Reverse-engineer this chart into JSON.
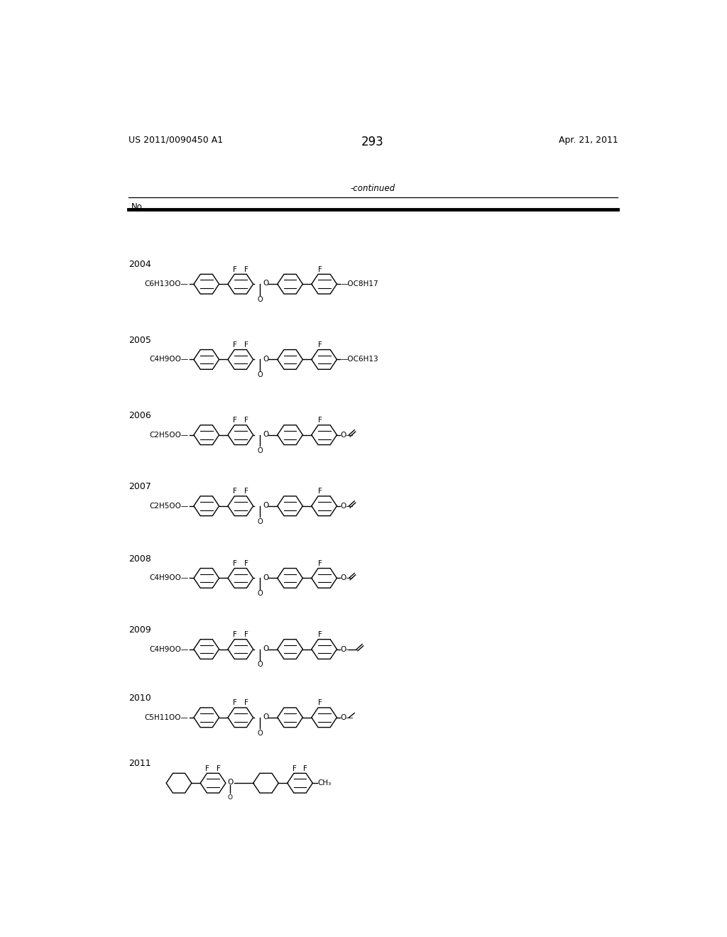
{
  "page_number": "293",
  "patent_number": "US 2011/0090450 A1",
  "patent_date": "Apr. 21, 2011",
  "background_color": "#ffffff",
  "compounds": [
    {
      "no": "2004",
      "left_group": "C6H13O",
      "right_group": "OC8H17",
      "right_type": "alkoxy"
    },
    {
      "no": "2005",
      "left_group": "C4H9O",
      "right_group": "OC6H13",
      "right_type": "alkoxy"
    },
    {
      "no": "2006",
      "left_group": "C2H5O",
      "right_group": "O",
      "right_vinyl": true,
      "right_type": "vinyl"
    },
    {
      "no": "2007",
      "left_group": "C2H5O",
      "right_group": "O",
      "right_allyl": true,
      "right_type": "allyl"
    },
    {
      "no": "2008",
      "left_group": "C4H9O",
      "right_group": "O",
      "right_allyl": true,
      "right_type": "allyl"
    },
    {
      "no": "2009",
      "left_group": "C4H9O",
      "right_group": "O",
      "right_butenyl": true,
      "right_type": "butenyl"
    },
    {
      "no": "2010",
      "left_group": "C5H11O",
      "right_group": "O",
      "right_ethoxy": true,
      "right_type": "ethoxy"
    },
    {
      "no": "2011",
      "left_group": "cyclohexyl",
      "right_group": "CH3",
      "right_type": "methyl",
      "special": true
    }
  ],
  "row_tops": [
    262,
    400,
    538,
    668,
    800,
    930,
    1055,
    1175
  ]
}
